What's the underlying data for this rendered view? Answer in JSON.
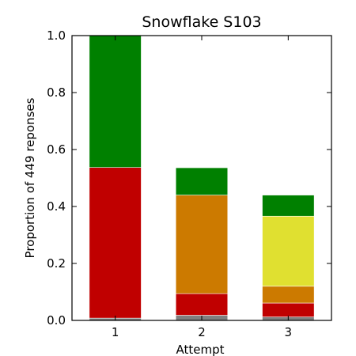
{
  "chart_data": {
    "type": "bar",
    "stacked": true,
    "title": "Snowflake S103",
    "xlabel": "Attempt",
    "ylabel": "Proportion of 449 reponses",
    "categories": [
      "1",
      "2",
      "3"
    ],
    "ylim": [
      0,
      1.0
    ],
    "yticks": [
      "0.0",
      "0.2",
      "0.4",
      "0.6",
      "0.8",
      "1.0"
    ],
    "grid": false,
    "legend": "none",
    "segments": [
      {
        "color": "#808080",
        "values": [
          0.008,
          0.018,
          0.012
        ]
      },
      {
        "color": "#c00000",
        "values": [
          0.529,
          0.076,
          0.049
        ]
      },
      {
        "color": "#cc7a00",
        "values": [
          0.0,
          0.346,
          0.059
        ]
      },
      {
        "color": "#e0e030",
        "values": [
          0.0,
          0.0,
          0.246
        ]
      },
      {
        "color": "#008000",
        "values": [
          0.463,
          0.096,
          0.074
        ]
      }
    ]
  }
}
